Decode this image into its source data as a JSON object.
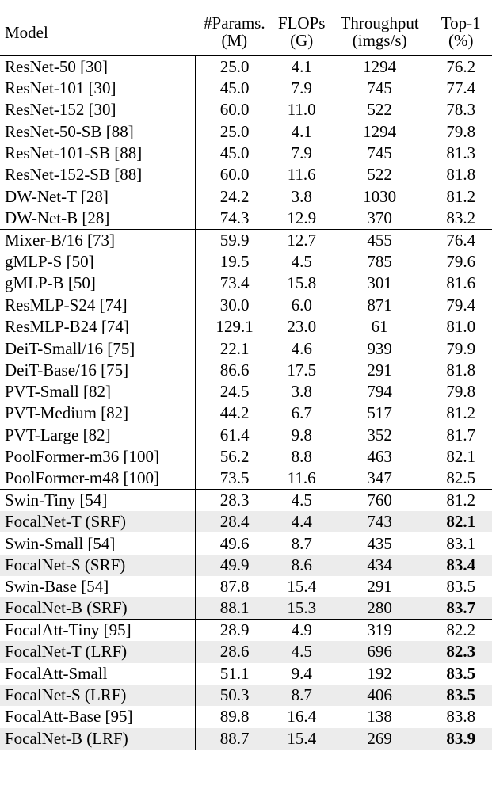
{
  "header": {
    "model": "Model",
    "params": [
      "#Params.",
      "(M)"
    ],
    "flops": [
      "FLOPs",
      "(G)"
    ],
    "throughput": [
      "Throughput",
      "(imgs/s)"
    ],
    "top1": [
      "Top-1",
      "(%)"
    ]
  },
  "groups": [
    {
      "rows": [
        {
          "model": "ResNet-50 [30]",
          "params": "25.0",
          "flops": "4.1",
          "throughput": "1294",
          "top1": "76.2",
          "highlight": false,
          "bold": false
        },
        {
          "model": "ResNet-101 [30]",
          "params": "45.0",
          "flops": "7.9",
          "throughput": "745",
          "top1": "77.4",
          "highlight": false,
          "bold": false
        },
        {
          "model": "ResNet-152 [30]",
          "params": "60.0",
          "flops": "11.0",
          "throughput": "522",
          "top1": "78.3",
          "highlight": false,
          "bold": false
        },
        {
          "model": "ResNet-50-SB [88]",
          "params": "25.0",
          "flops": "4.1",
          "throughput": "1294",
          "top1": "79.8",
          "highlight": false,
          "bold": false
        },
        {
          "model": "ResNet-101-SB [88]",
          "params": "45.0",
          "flops": "7.9",
          "throughput": "745",
          "top1": "81.3",
          "highlight": false,
          "bold": false
        },
        {
          "model": "ResNet-152-SB [88]",
          "params": "60.0",
          "flops": "11.6",
          "throughput": "522",
          "top1": "81.8",
          "highlight": false,
          "bold": false
        },
        {
          "model": "DW-Net-T [28]",
          "params": "24.2",
          "flops": "3.8",
          "throughput": "1030",
          "top1": "81.2",
          "highlight": false,
          "bold": false
        },
        {
          "model": "DW-Net-B [28]",
          "params": "74.3",
          "flops": "12.9",
          "throughput": "370",
          "top1": "83.2",
          "highlight": false,
          "bold": false
        }
      ]
    },
    {
      "rows": [
        {
          "model": "Mixer-B/16 [73]",
          "params": "59.9",
          "flops": "12.7",
          "throughput": "455",
          "top1": "76.4",
          "highlight": false,
          "bold": false
        },
        {
          "model": "gMLP-S [50]",
          "params": "19.5",
          "flops": "4.5",
          "throughput": "785",
          "top1": "79.6",
          "highlight": false,
          "bold": false
        },
        {
          "model": "gMLP-B [50]",
          "params": "73.4",
          "flops": "15.8",
          "throughput": "301",
          "top1": "81.6",
          "highlight": false,
          "bold": false
        },
        {
          "model": "ResMLP-S24 [74]",
          "params": "30.0",
          "flops": "6.0",
          "throughput": "871",
          "top1": "79.4",
          "highlight": false,
          "bold": false
        },
        {
          "model": "ResMLP-B24 [74]",
          "params": "129.1",
          "flops": "23.0",
          "throughput": "61",
          "top1": "81.0",
          "highlight": false,
          "bold": false
        }
      ]
    },
    {
      "rows": [
        {
          "model": "DeiT-Small/16 [75]",
          "params": "22.1",
          "flops": "4.6",
          "throughput": "939",
          "top1": "79.9",
          "highlight": false,
          "bold": false
        },
        {
          "model": "DeiT-Base/16 [75]",
          "params": "86.6",
          "flops": "17.5",
          "throughput": "291",
          "top1": "81.8",
          "highlight": false,
          "bold": false
        },
        {
          "model": "PVT-Small [82]",
          "params": "24.5",
          "flops": "3.8",
          "throughput": "794",
          "top1": "79.8",
          "highlight": false,
          "bold": false
        },
        {
          "model": "PVT-Medium [82]",
          "params": "44.2",
          "flops": "6.7",
          "throughput": "517",
          "top1": "81.2",
          "highlight": false,
          "bold": false
        },
        {
          "model": "PVT-Large [82]",
          "params": "61.4",
          "flops": "9.8",
          "throughput": "352",
          "top1": "81.7",
          "highlight": false,
          "bold": false
        },
        {
          "model": "PoolFormer-m36 [100]",
          "params": "56.2",
          "flops": "8.8",
          "throughput": "463",
          "top1": "82.1",
          "highlight": false,
          "bold": false
        },
        {
          "model": "PoolFormer-m48 [100]",
          "params": "73.5",
          "flops": "11.6",
          "throughput": "347",
          "top1": "82.5",
          "highlight": false,
          "bold": false
        }
      ]
    },
    {
      "rows": [
        {
          "model": "Swin-Tiny [54]",
          "params": "28.3",
          "flops": "4.5",
          "throughput": "760",
          "top1": "81.2",
          "highlight": false,
          "bold": false
        },
        {
          "model": "FocalNet-T (SRF)",
          "params": "28.4",
          "flops": "4.4",
          "throughput": "743",
          "top1": "82.1",
          "highlight": true,
          "bold": true
        },
        {
          "model": "Swin-Small [54]",
          "params": "49.6",
          "flops": "8.7",
          "throughput": "435",
          "top1": "83.1",
          "highlight": false,
          "bold": false
        },
        {
          "model": "FocalNet-S (SRF)",
          "params": "49.9",
          "flops": "8.6",
          "throughput": "434",
          "top1": "83.4",
          "highlight": true,
          "bold": true
        },
        {
          "model": "Swin-Base [54]",
          "params": "87.8",
          "flops": "15.4",
          "throughput": "291",
          "top1": "83.5",
          "highlight": false,
          "bold": false
        },
        {
          "model": "FocalNet-B (SRF)",
          "params": "88.1",
          "flops": "15.3",
          "throughput": "280",
          "top1": "83.7",
          "highlight": true,
          "bold": true
        }
      ]
    },
    {
      "rows": [
        {
          "model": "FocalAtt-Tiny [95]",
          "params": "28.9",
          "flops": "4.9",
          "throughput": "319",
          "top1": "82.2",
          "highlight": false,
          "bold": false
        },
        {
          "model": "FocalNet-T (LRF)",
          "params": "28.6",
          "flops": "4.5",
          "throughput": "696",
          "top1": "82.3",
          "highlight": true,
          "bold": true
        },
        {
          "model": "FocalAtt-Small",
          "params": "51.1",
          "flops": "9.4",
          "throughput": "192",
          "top1": "83.5",
          "highlight": false,
          "bold": true
        },
        {
          "model": "FocalNet-S (LRF)",
          "params": "50.3",
          "flops": "8.7",
          "throughput": "406",
          "top1": "83.5",
          "highlight": true,
          "bold": true
        },
        {
          "model": "FocalAtt-Base [95]",
          "params": "89.8",
          "flops": "16.4",
          "throughput": "138",
          "top1": "83.8",
          "highlight": false,
          "bold": false
        },
        {
          "model": "FocalNet-B (LRF)",
          "params": "88.7",
          "flops": "15.4",
          "throughput": "269",
          "top1": "83.9",
          "highlight": true,
          "bold": true
        }
      ]
    }
  ],
  "colors": {
    "highlight": "#ececec",
    "rule": "#000000"
  }
}
